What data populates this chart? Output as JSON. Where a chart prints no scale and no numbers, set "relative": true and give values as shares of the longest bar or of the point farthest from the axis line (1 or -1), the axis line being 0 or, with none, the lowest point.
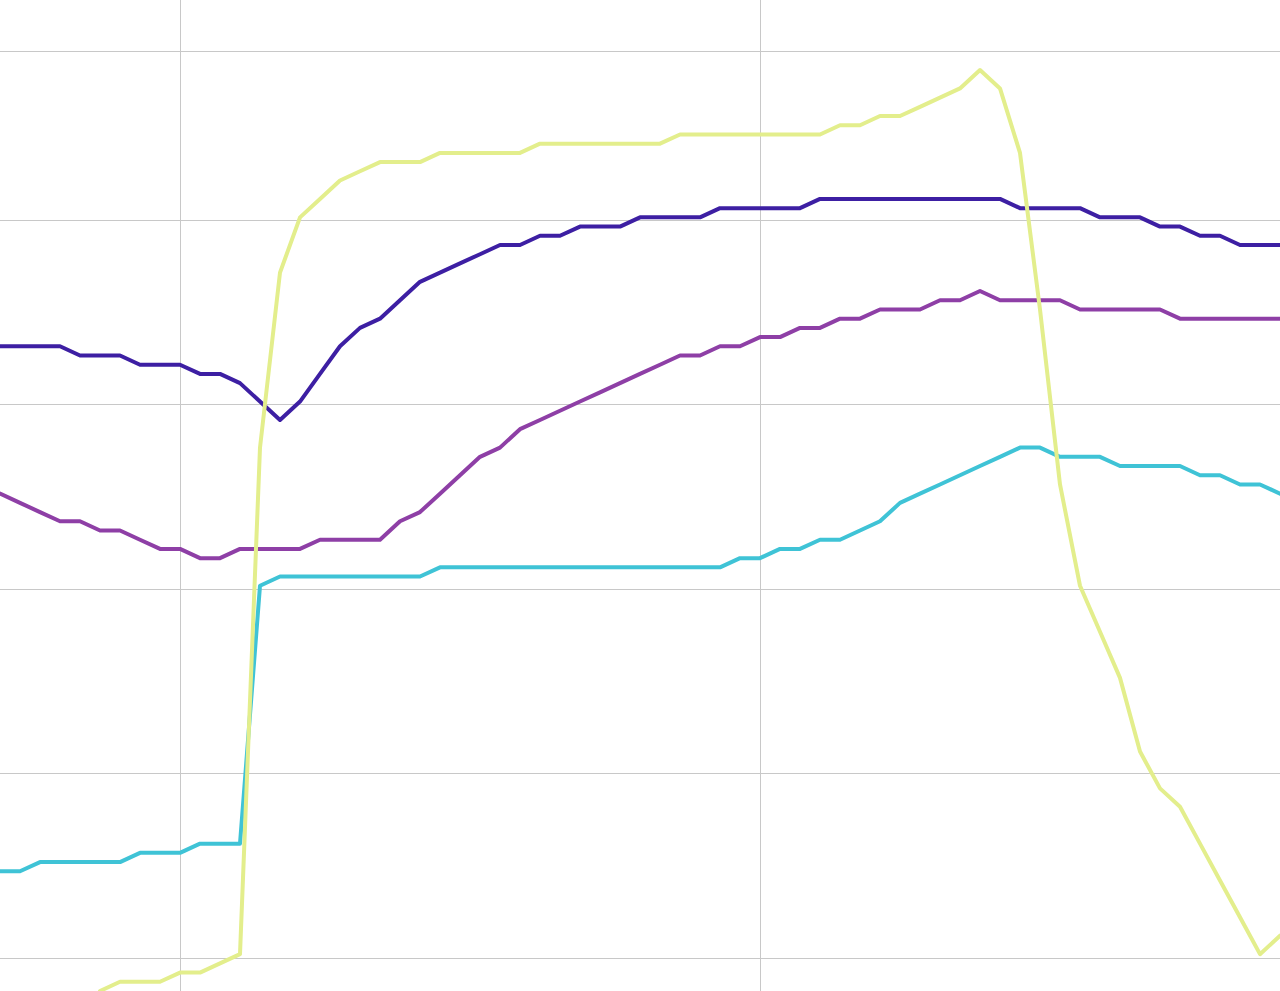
{
  "chart_data": {
    "type": "line",
    "relative": true,
    "grid": true,
    "legend": false,
    "marker": "none",
    "line_style": "solid",
    "categories": [
      null,
      null,
      null,
      null,
      null,
      null,
      null,
      null,
      null,
      null,
      null,
      null,
      null,
      null,
      null,
      null,
      null,
      null,
      null,
      null,
      null,
      null,
      null,
      null,
      null,
      null,
      null,
      null,
      null,
      null,
      null,
      null,
      null,
      null,
      null,
      null,
      null,
      null,
      null,
      null,
      null,
      null,
      null,
      null,
      null,
      null,
      null,
      null,
      null,
      null,
      null,
      null,
      null,
      null,
      null,
      null,
      null,
      null,
      null,
      null,
      null,
      null,
      null,
      null,
      null
    ],
    "series": [
      {
        "color": "#e3ee8c",
        "values": [
          null,
          null,
          null,
          null,
          null,
          0,
          0.01,
          0.01,
          0.01,
          0.02,
          0.02,
          0.03,
          0.04,
          0.59,
          0.78,
          0.84,
          0.86,
          0.88,
          0.89,
          0.9,
          0.9,
          0.9,
          0.91,
          0.91,
          0.91,
          0.91,
          0.91,
          0.92,
          0.92,
          0.92,
          0.92,
          0.92,
          0.92,
          0.92,
          0.93,
          0.93,
          0.93,
          0.93,
          0.93,
          0.93,
          0.93,
          0.93,
          0.94,
          0.94,
          0.95,
          0.95,
          0.96,
          0.97,
          0.98,
          1,
          0.98,
          0.91,
          0.74,
          0.55,
          0.44,
          0.39,
          0.34,
          0.26,
          0.22,
          0.2,
          0.16,
          0.12,
          0.08,
          0.04,
          0.06
        ]
      },
      {
        "color": "#3d1fa3",
        "values": [
          0.7,
          0.7,
          0.7,
          0.7,
          0.69,
          0.69,
          0.69,
          0.68,
          0.68,
          0.68,
          0.67,
          0.67,
          0.66,
          0.64,
          0.62,
          0.64,
          0.67,
          0.7,
          0.72,
          0.73,
          0.75,
          0.77,
          0.78,
          0.79,
          0.8,
          0.81,
          0.81,
          0.82,
          0.82,
          0.83,
          0.83,
          0.83,
          0.84,
          0.84,
          0.84,
          0.84,
          0.85,
          0.85,
          0.85,
          0.85,
          0.85,
          0.86,
          0.86,
          0.86,
          0.86,
          0.86,
          0.86,
          0.86,
          0.86,
          0.86,
          0.86,
          0.85,
          0.85,
          0.85,
          0.85,
          0.84,
          0.84,
          0.84,
          0.83,
          0.83,
          0.82,
          0.82,
          0.81,
          0.81,
          0.81
        ]
      },
      {
        "color": "#8e3fa6",
        "values": [
          0.54,
          0.53,
          0.52,
          0.51,
          0.51,
          0.5,
          0.5,
          0.49,
          0.48,
          0.48,
          0.47,
          0.47,
          0.48,
          0.48,
          0.48,
          0.48,
          0.49,
          0.49,
          0.49,
          0.49,
          0.51,
          0.52,
          0.54,
          0.56,
          0.58,
          0.59,
          0.61,
          0.62,
          0.63,
          0.64,
          0.65,
          0.66,
          0.67,
          0.68,
          0.69,
          0.69,
          0.7,
          0.7,
          0.71,
          0.71,
          0.72,
          0.72,
          0.73,
          0.73,
          0.74,
          0.74,
          0.74,
          0.75,
          0.75,
          0.76,
          0.75,
          0.75,
          0.75,
          0.75,
          0.74,
          0.74,
          0.74,
          0.74,
          0.74,
          0.73,
          0.73,
          0.73,
          0.73,
          0.73,
          0.73
        ]
      },
      {
        "color": "#3fc3d6",
        "values": [
          0.13,
          0.13,
          0.14,
          0.14,
          0.14,
          0.14,
          0.14,
          0.15,
          0.15,
          0.15,
          0.16,
          0.16,
          0.16,
          0.44,
          0.45,
          0.45,
          0.45,
          0.45,
          0.45,
          0.45,
          0.45,
          0.45,
          0.46,
          0.46,
          0.46,
          0.46,
          0.46,
          0.46,
          0.46,
          0.46,
          0.46,
          0.46,
          0.46,
          0.46,
          0.46,
          0.46,
          0.46,
          0.47,
          0.47,
          0.48,
          0.48,
          0.49,
          0.49,
          0.5,
          0.51,
          0.53,
          0.54,
          0.55,
          0.56,
          0.57,
          0.58,
          0.59,
          0.59,
          0.58,
          0.58,
          0.58,
          0.57,
          0.57,
          0.57,
          0.57,
          0.56,
          0.56,
          0.55,
          0.55,
          0.54
        ]
      }
    ]
  }
}
